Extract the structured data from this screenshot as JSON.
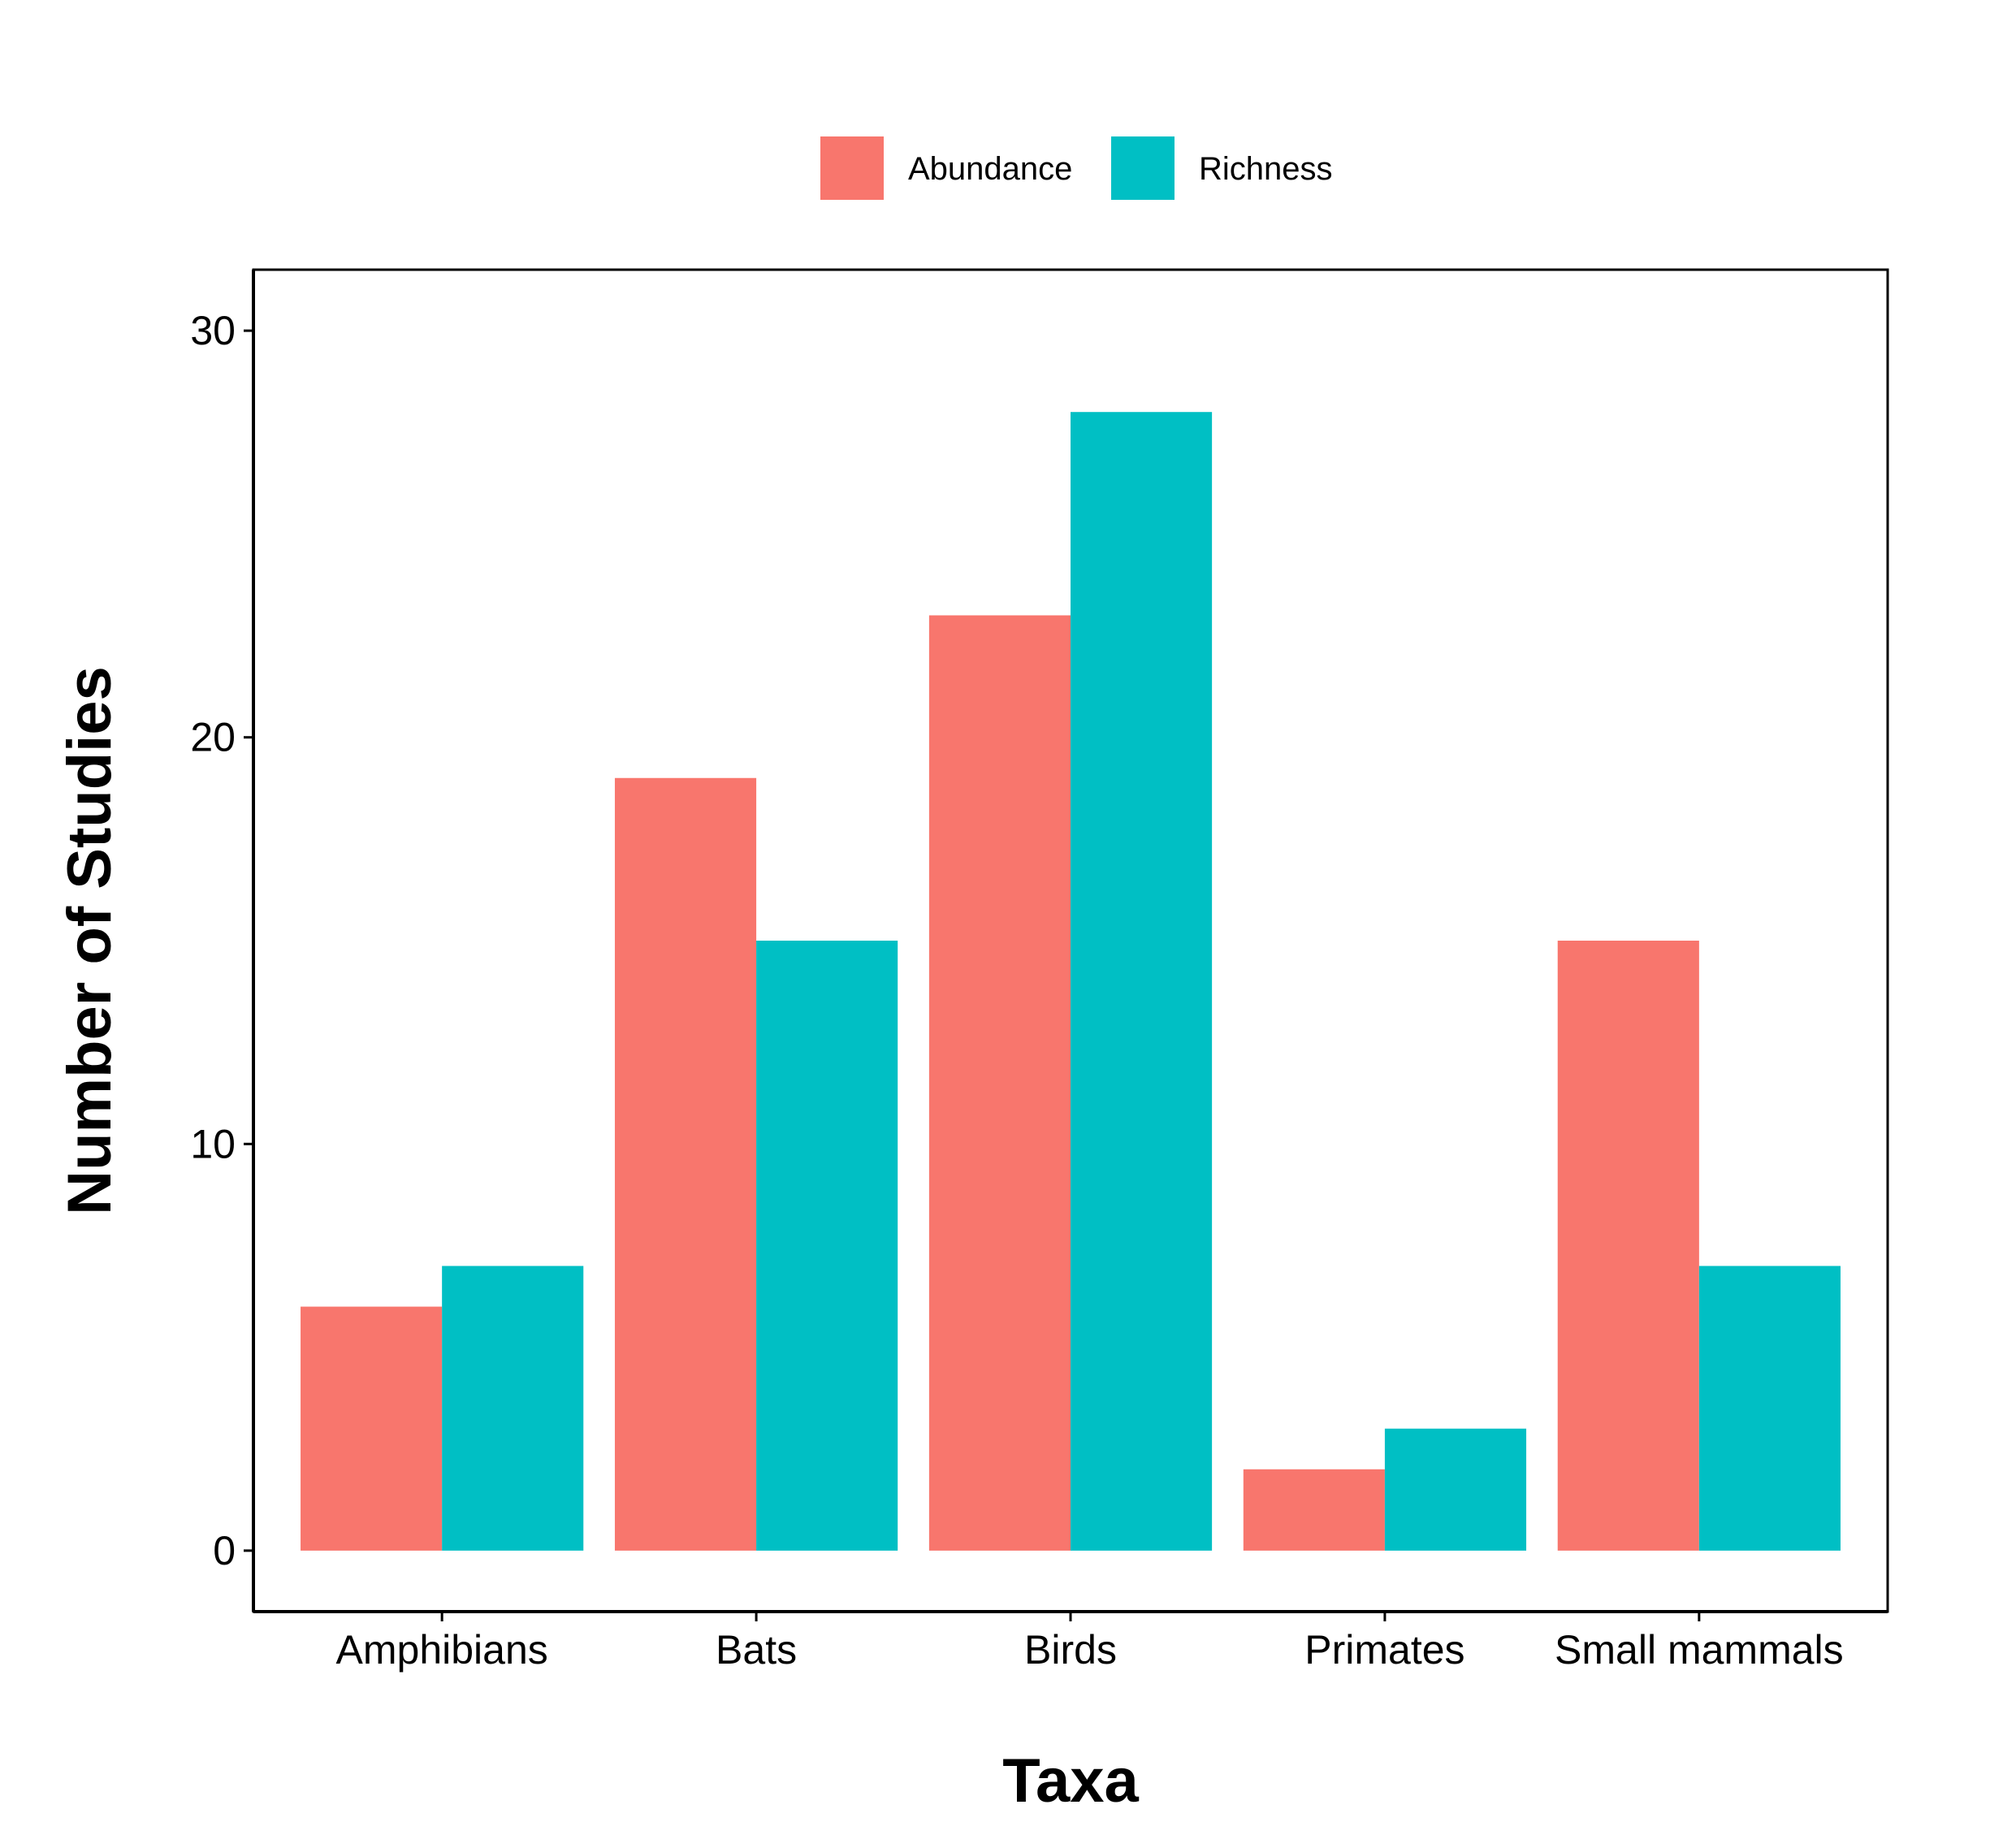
{
  "chart_data": {
    "type": "bar",
    "xlabel": "Taxa",
    "ylabel": "Number of Studies",
    "categories": [
      "Amphibians",
      "Bats",
      "Birds",
      "Primates",
      "Small mammals"
    ],
    "series": [
      {
        "name": "Abundance",
        "color": "#F8766D",
        "values": [
          6,
          19,
          23,
          2,
          15
        ]
      },
      {
        "name": "Richness",
        "color": "#00BFC4",
        "values": [
          7,
          15,
          28,
          3,
          7
        ]
      }
    ],
    "yticks": [
      0,
      10,
      20,
      30
    ],
    "ylim": [
      -1.5,
      31.5
    ],
    "grid": false,
    "legend_position": "top"
  }
}
